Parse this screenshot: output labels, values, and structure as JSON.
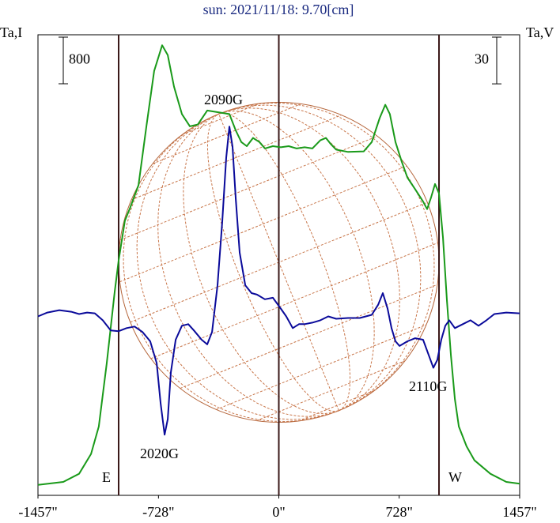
{
  "chart_data": {
    "type": "line",
    "title": "sun: 2021/11/18: 9.70[cm]",
    "ylabel": "Ta,I",
    "y2label": "Ta,V",
    "xlim": [
      -1457,
      1457
    ],
    "xticks": [
      {
        "value": -1457,
        "label": "-1457\""
      },
      {
        "value": -728,
        "label": "-728\""
      },
      {
        "value": 0,
        "label": "0\""
      },
      {
        "value": 728,
        "label": "728\""
      },
      {
        "value": 1457,
        "label": "1457\""
      }
    ],
    "ylim": [
      0,
      7900
    ],
    "y2lim": [
      -115,
      181
    ],
    "limb_lines": [
      -969,
      0,
      969
    ],
    "limb_labels": [
      "E",
      "W"
    ],
    "scale_bars": {
      "y": 800,
      "y2": 30
    },
    "annotations": [
      "2090G",
      "2020G",
      "2110G"
    ],
    "series": [
      {
        "color": "#1a9a1a",
        "x": [
          -1457,
          -1304,
          -1208,
          -1136,
          -1089,
          -1041,
          -993,
          -969,
          -931,
          -897,
          -849,
          -801,
          -754,
          -706,
          -672,
          -634,
          -586,
          -538,
          -490,
          -433,
          -299,
          -261,
          -227,
          -194,
          -156,
          -117,
          -84,
          -36,
          12,
          60,
          108,
          156,
          203,
          251,
          285,
          313,
          347,
          419,
          514,
          562,
          610,
          644,
          672,
          706,
          744,
          778,
          825,
          873,
          897,
          921,
          945,
          969,
          993,
          1017,
          1041,
          1065,
          1089,
          1136,
          1184,
          1280,
          1376,
          1457
        ],
        "values": [
          180,
          230,
          370,
          710,
          1180,
          2260,
          3490,
          4030,
          4710,
          4950,
          5320,
          6330,
          7280,
          7720,
          7550,
          7010,
          6540,
          6330,
          6360,
          6600,
          6540,
          6260,
          6060,
          5990,
          6130,
          6060,
          5950,
          5990,
          5970,
          5990,
          5950,
          5970,
          5950,
          6090,
          6130,
          6030,
          5930,
          5890,
          5900,
          6060,
          6470,
          6700,
          6540,
          6060,
          5720,
          5450,
          5250,
          5040,
          4910,
          5110,
          5340,
          5180,
          4430,
          3350,
          2400,
          1650,
          1180,
          840,
          600,
          370,
          230,
          200
        ]
      },
      {
        "color": "#0a0a9a",
        "axis": "y2",
        "x": [
          -1457,
          -1400,
          -1328,
          -1256,
          -1208,
          -1160,
          -1113,
          -1065,
          -1017,
          -969,
          -921,
          -873,
          -825,
          -778,
          -739,
          -715,
          -691,
          -672,
          -653,
          -624,
          -586,
          -548,
          -514,
          -467,
          -433,
          -404,
          -371,
          -342,
          -318,
          -299,
          -280,
          -261,
          -237,
          -203,
          -165,
          -132,
          -84,
          -36,
          12,
          45,
          84,
          122,
          156,
          203,
          251,
          299,
          347,
          419,
          490,
          562,
          601,
          629,
          658,
          682,
          706,
          730,
          778,
          825,
          873,
          907,
          935,
          959,
          983,
          1007,
          1031,
          1065,
          1113,
          1160,
          1208,
          1256,
          1304,
          1376,
          1457
        ],
        "values": [
          0,
          2.5,
          4,
          3,
          1.5,
          2.5,
          2,
          -2.5,
          -9,
          -9.5,
          -7.5,
          -6.5,
          -10,
          -16,
          -30,
          -56,
          -76,
          -66,
          -36,
          -15,
          -6,
          -5,
          -9,
          -15,
          -18,
          -10,
          20,
          61,
          102,
          122,
          109,
          76,
          41,
          20,
          15,
          14,
          11,
          12,
          5,
          0,
          -7.5,
          -5,
          -5,
          -4,
          -2.5,
          0,
          -1.5,
          -1,
          -1,
          1,
          7.5,
          15,
          5,
          -7.5,
          -16,
          -19,
          -16,
          -14,
          -15,
          -25,
          -33,
          -28,
          -15,
          -6,
          -2.5,
          -7.5,
          -5,
          -2.5,
          -6,
          -2.5,
          1.5,
          2.5,
          2
        ]
      }
    ]
  }
}
